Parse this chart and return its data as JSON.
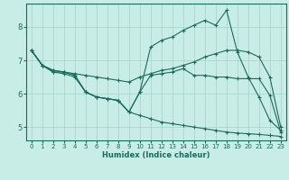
{
  "title": "",
  "xlabel": "Humidex (Indice chaleur)",
  "bg_color": "#c8ece6",
  "line_color": "#1a6b60",
  "grid_color": "#a0d4ca",
  "xlim": [
    -0.5,
    23.5
  ],
  "ylim": [
    4.6,
    8.7
  ],
  "xticks": [
    0,
    1,
    2,
    3,
    4,
    5,
    6,
    7,
    8,
    9,
    10,
    11,
    12,
    13,
    14,
    15,
    16,
    17,
    18,
    19,
    20,
    21,
    22,
    23
  ],
  "yticks": [
    5,
    6,
    7,
    8
  ],
  "lines": [
    {
      "x": [
        0,
        1,
        2,
        3,
        4,
        5,
        6,
        7,
        8,
        9,
        10,
        11,
        12,
        13,
        14,
        15,
        16,
        17,
        18,
        19,
        20,
        21,
        22,
        23
      ],
      "y": [
        7.3,
        6.85,
        6.7,
        6.65,
        6.6,
        6.55,
        6.5,
        6.45,
        6.4,
        6.35,
        6.5,
        6.6,
        6.7,
        6.75,
        6.85,
        6.95,
        7.1,
        7.2,
        7.3,
        7.3,
        7.25,
        7.1,
        6.5,
        5.0
      ]
    },
    {
      "x": [
        0,
        1,
        2,
        3,
        4,
        5,
        6,
        7,
        8,
        9,
        10,
        11,
        12,
        13,
        14,
        15,
        16,
        17,
        18,
        19,
        20,
        21,
        22,
        23
      ],
      "y": [
        7.3,
        6.85,
        6.7,
        6.65,
        6.55,
        6.05,
        5.9,
        5.85,
        5.8,
        5.45,
        6.05,
        7.4,
        7.6,
        7.7,
        7.9,
        8.05,
        8.2,
        8.05,
        8.5,
        7.25,
        6.5,
        5.9,
        5.2,
        4.9
      ]
    },
    {
      "x": [
        0,
        1,
        2,
        3,
        4,
        5,
        6,
        7,
        8,
        9,
        10,
        11,
        12,
        13,
        14,
        15,
        16,
        17,
        18,
        19,
        20,
        21,
        22,
        23
      ],
      "y": [
        7.3,
        6.85,
        6.65,
        6.65,
        6.55,
        6.05,
        5.9,
        5.85,
        5.8,
        5.45,
        6.05,
        6.55,
        6.6,
        6.65,
        6.75,
        6.55,
        6.55,
        6.5,
        6.5,
        6.45,
        6.45,
        6.45,
        5.95,
        4.85
      ]
    },
    {
      "x": [
        0,
        1,
        2,
        3,
        4,
        5,
        6,
        7,
        8,
        9,
        10,
        11,
        12,
        13,
        14,
        15,
        16,
        17,
        18,
        19,
        20,
        21,
        22,
        23
      ],
      "y": [
        7.3,
        6.85,
        6.65,
        6.6,
        6.5,
        6.05,
        5.9,
        5.85,
        5.8,
        5.45,
        5.35,
        5.25,
        5.15,
        5.1,
        5.05,
        5.0,
        4.95,
        4.9,
        4.85,
        4.82,
        4.8,
        4.78,
        4.75,
        4.72
      ]
    }
  ]
}
